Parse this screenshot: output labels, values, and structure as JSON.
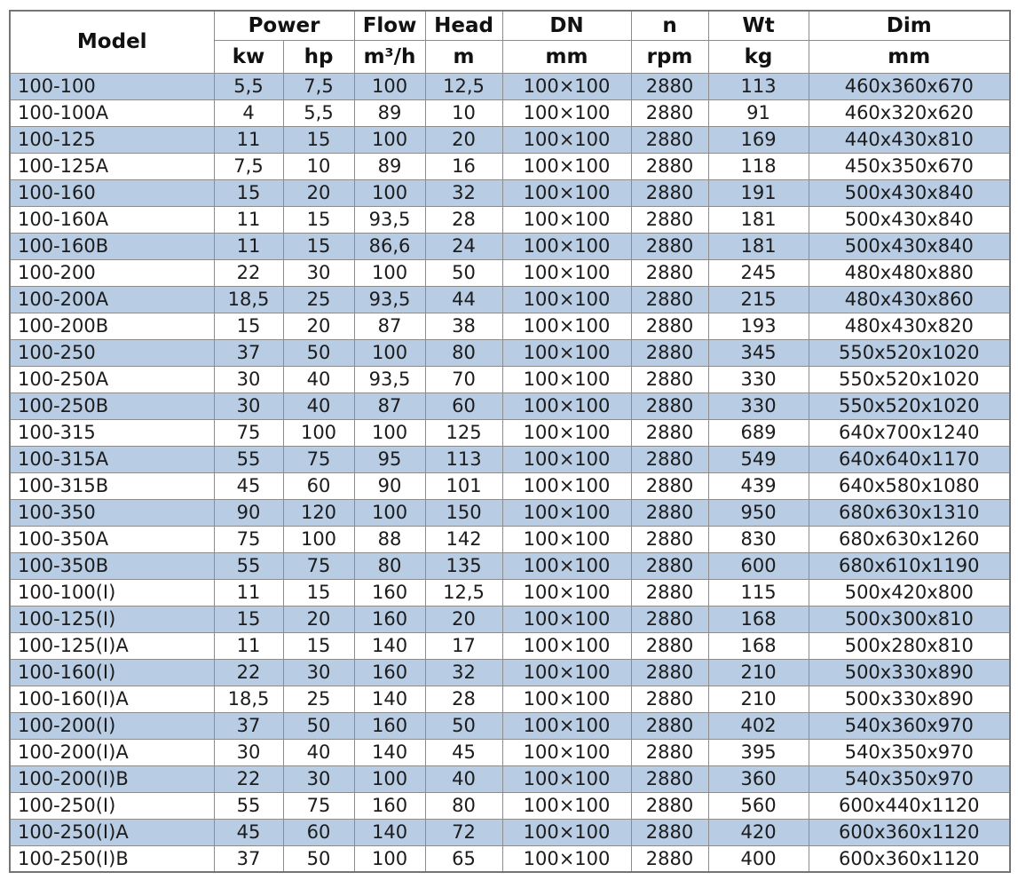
{
  "header": {
    "model": "Model",
    "power": "Power",
    "kw": "kw",
    "hp": "hp",
    "flow": "Flow",
    "flow_unit": "m³/h",
    "head": "Head",
    "head_unit": "m",
    "dn": "DN",
    "dn_unit": "mm",
    "n": "n",
    "n_unit": "rpm",
    "wt": "Wt",
    "wt_unit": "kg",
    "dim": "Dim",
    "dim_unit": "mm"
  },
  "colors": {
    "row_alt": "#b8cce4",
    "row_base": "#ffffff",
    "border": "#8c8c8c",
    "outer_border": "#757575",
    "text": "#1c1c1c"
  },
  "rows": [
    {
      "model": "100-100",
      "kw": "5,5",
      "hp": "7,5",
      "flow": "100",
      "head": "12,5",
      "dn": "100×100",
      "rpm": "2880",
      "wt": "113",
      "dim": "460x360x670"
    },
    {
      "model": "100-100A",
      "kw": "4",
      "hp": "5,5",
      "flow": "89",
      "head": "10",
      "dn": "100×100",
      "rpm": "2880",
      "wt": "91",
      "dim": "460x320x620"
    },
    {
      "model": "100-125",
      "kw": "11",
      "hp": "15",
      "flow": "100",
      "head": "20",
      "dn": "100×100",
      "rpm": "2880",
      "wt": "169",
      "dim": "440x430x810"
    },
    {
      "model": "100-125A",
      "kw": "7,5",
      "hp": "10",
      "flow": "89",
      "head": "16",
      "dn": "100×100",
      "rpm": "2880",
      "wt": "118",
      "dim": "450x350x670"
    },
    {
      "model": "100-160",
      "kw": "15",
      "hp": "20",
      "flow": "100",
      "head": "32",
      "dn": "100×100",
      "rpm": "2880",
      "wt": "191",
      "dim": "500x430x840"
    },
    {
      "model": "100-160A",
      "kw": "11",
      "hp": "15",
      "flow": "93,5",
      "head": "28",
      "dn": "100×100",
      "rpm": "2880",
      "wt": "181",
      "dim": "500x430x840"
    },
    {
      "model": "100-160B",
      "kw": "11",
      "hp": "15",
      "flow": "86,6",
      "head": "24",
      "dn": "100×100",
      "rpm": "2880",
      "wt": "181",
      "dim": "500x430x840"
    },
    {
      "model": "100-200",
      "kw": "22",
      "hp": "30",
      "flow": "100",
      "head": "50",
      "dn": "100×100",
      "rpm": "2880",
      "wt": "245",
      "dim": "480x480x880"
    },
    {
      "model": "100-200A",
      "kw": "18,5",
      "hp": "25",
      "flow": "93,5",
      "head": "44",
      "dn": "100×100",
      "rpm": "2880",
      "wt": "215",
      "dim": "480x430x860"
    },
    {
      "model": "100-200B",
      "kw": "15",
      "hp": "20",
      "flow": "87",
      "head": "38",
      "dn": "100×100",
      "rpm": "2880",
      "wt": "193",
      "dim": "480x430x820"
    },
    {
      "model": "100-250",
      "kw": "37",
      "hp": "50",
      "flow": "100",
      "head": "80",
      "dn": "100×100",
      "rpm": "2880",
      "wt": "345",
      "dim": "550x520x1020"
    },
    {
      "model": "100-250A",
      "kw": "30",
      "hp": "40",
      "flow": "93,5",
      "head": "70",
      "dn": "100×100",
      "rpm": "2880",
      "wt": "330",
      "dim": "550x520x1020"
    },
    {
      "model": "100-250B",
      "kw": "30",
      "hp": "40",
      "flow": "87",
      "head": "60",
      "dn": "100×100",
      "rpm": "2880",
      "wt": "330",
      "dim": "550x520x1020"
    },
    {
      "model": "100-315",
      "kw": "75",
      "hp": "100",
      "flow": "100",
      "head": "125",
      "dn": "100×100",
      "rpm": "2880",
      "wt": "689",
      "dim": "640x700x1240"
    },
    {
      "model": "100-315A",
      "kw": "55",
      "hp": "75",
      "flow": "95",
      "head": "113",
      "dn": "100×100",
      "rpm": "2880",
      "wt": "549",
      "dim": "640x640x1170"
    },
    {
      "model": "100-315B",
      "kw": "45",
      "hp": "60",
      "flow": "90",
      "head": "101",
      "dn": "100×100",
      "rpm": "2880",
      "wt": "439",
      "dim": "640x580x1080"
    },
    {
      "model": "100-350",
      "kw": "90",
      "hp": "120",
      "flow": "100",
      "head": "150",
      "dn": "100×100",
      "rpm": "2880",
      "wt": "950",
      "dim": "680x630x1310"
    },
    {
      "model": "100-350A",
      "kw": "75",
      "hp": "100",
      "flow": "88",
      "head": "142",
      "dn": "100×100",
      "rpm": "2880",
      "wt": "830",
      "dim": "680x630x1260"
    },
    {
      "model": "100-350B",
      "kw": "55",
      "hp": "75",
      "flow": "80",
      "head": "135",
      "dn": "100×100",
      "rpm": "2880",
      "wt": "600",
      "dim": "680x610x1190"
    },
    {
      "model": "100-100(I)",
      "kw": "11",
      "hp": "15",
      "flow": "160",
      "head": "12,5",
      "dn": "100×100",
      "rpm": "2880",
      "wt": "115",
      "dim": "500x420x800"
    },
    {
      "model": "100-125(I)",
      "kw": "15",
      "hp": "20",
      "flow": "160",
      "head": "20",
      "dn": "100×100",
      "rpm": "2880",
      "wt": "168",
      "dim": "500x300x810"
    },
    {
      "model": "100-125(I)A",
      "kw": "11",
      "hp": "15",
      "flow": "140",
      "head": "17",
      "dn": "100×100",
      "rpm": "2880",
      "wt": "168",
      "dim": "500x280x810"
    },
    {
      "model": "100-160(I)",
      "kw": "22",
      "hp": "30",
      "flow": "160",
      "head": "32",
      "dn": "100×100",
      "rpm": "2880",
      "wt": "210",
      "dim": "500x330x890"
    },
    {
      "model": "100-160(I)A",
      "kw": "18,5",
      "hp": "25",
      "flow": "140",
      "head": "28",
      "dn": "100×100",
      "rpm": "2880",
      "wt": "210",
      "dim": "500x330x890"
    },
    {
      "model": "100-200(I)",
      "kw": "37",
      "hp": "50",
      "flow": "160",
      "head": "50",
      "dn": "100×100",
      "rpm": "2880",
      "wt": "402",
      "dim": "540x360x970"
    },
    {
      "model": "100-200(I)A",
      "kw": "30",
      "hp": "40",
      "flow": "140",
      "head": "45",
      "dn": "100×100",
      "rpm": "2880",
      "wt": "395",
      "dim": "540x350x970"
    },
    {
      "model": "100-200(I)B",
      "kw": "22",
      "hp": "30",
      "flow": "100",
      "head": "40",
      "dn": "100×100",
      "rpm": "2880",
      "wt": "360",
      "dim": "540x350x970"
    },
    {
      "model": "100-250(I)",
      "kw": "55",
      "hp": "75",
      "flow": "160",
      "head": "80",
      "dn": "100×100",
      "rpm": "2880",
      "wt": "560",
      "dim": "600x440x1120"
    },
    {
      "model": "100-250(I)A",
      "kw": "45",
      "hp": "60",
      "flow": "140",
      "head": "72",
      "dn": "100×100",
      "rpm": "2880",
      "wt": "420",
      "dim": "600x360x1120"
    },
    {
      "model": "100-250(I)B",
      "kw": "37",
      "hp": "50",
      "flow": "100",
      "head": "65",
      "dn": "100×100",
      "rpm": "2880",
      "wt": "400",
      "dim": "600x360x1120"
    }
  ]
}
